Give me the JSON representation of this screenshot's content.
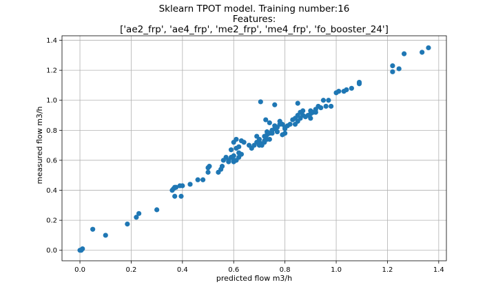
{
  "chart_data": {
    "type": "scatter",
    "title_lines": [
      "Sklearn TPOT model. Training number:16",
      "Features:",
      "['ae2_frp', 'ae4_frp', 'me2_frp', 'me4_frp', 'fo_booster_24']"
    ],
    "xlabel": "predicted flow m3/h",
    "ylabel": "measured flow m3/h",
    "xlim": [
      -0.07,
      1.43
    ],
    "ylim": [
      -0.07,
      1.43
    ],
    "xticks": [
      0.0,
      0.2,
      0.4,
      0.6,
      0.8,
      1.0,
      1.2,
      1.4
    ],
    "xtick_labels": [
      "0.0",
      "0.2",
      "0.4",
      "0.6",
      "0.8",
      "1.0",
      "1.2",
      "1.4"
    ],
    "yticks": [
      0.0,
      0.2,
      0.4,
      0.6,
      0.8,
      1.0,
      1.2,
      1.4
    ],
    "ytick_labels": [
      "0.0",
      "0.2",
      "0.4",
      "0.6",
      "0.8",
      "1.0",
      "1.2",
      "1.4"
    ],
    "grid": true,
    "marker_color": "#1f77b4",
    "series": [
      {
        "x": [
          0.0,
          0.01,
          0.005,
          0.05,
          0.1,
          0.185,
          0.22,
          0.23,
          0.3,
          0.36,
          0.365,
          0.37,
          0.375,
          0.39,
          0.4,
          0.37,
          0.395,
          0.43,
          0.46,
          0.48,
          0.5,
          0.5,
          0.505,
          0.54,
          0.55,
          0.555,
          0.56,
          0.57,
          0.58,
          0.58,
          0.59,
          0.6,
          0.6,
          0.59,
          0.6,
          0.61,
          0.62,
          0.61,
          0.62,
          0.63,
          0.62,
          0.61,
          0.6,
          0.63,
          0.64,
          0.66,
          0.67,
          0.68,
          0.69,
          0.7,
          0.7,
          0.71,
          0.72,
          0.72,
          0.73,
          0.73,
          0.74,
          0.74,
          0.75,
          0.75,
          0.76,
          0.76,
          0.77,
          0.78,
          0.78,
          0.79,
          0.8,
          0.8,
          0.81,
          0.82,
          0.83,
          0.84,
          0.85,
          0.85,
          0.86,
          0.86,
          0.87,
          0.87,
          0.88,
          0.89,
          0.9,
          0.9,
          0.91,
          0.92,
          0.93,
          0.94,
          0.95,
          0.96,
          0.97,
          0.98,
          0.705,
          0.725,
          0.74,
          0.76,
          0.77,
          0.85,
          0.84,
          0.69,
          0.7,
          0.71,
          0.72,
          0.8,
          0.79,
          0.75,
          0.73,
          0.9,
          0.92,
          1.0,
          1.01,
          1.03,
          1.04,
          1.06,
          1.09,
          1.09,
          1.22,
          1.22,
          1.245,
          1.265,
          1.335,
          1.36
        ],
        "y": [
          0.0,
          0.01,
          0.0,
          0.14,
          0.1,
          0.175,
          0.22,
          0.245,
          0.27,
          0.4,
          0.41,
          0.42,
          0.42,
          0.43,
          0.43,
          0.36,
          0.36,
          0.44,
          0.47,
          0.47,
          0.52,
          0.55,
          0.56,
          0.52,
          0.54,
          0.56,
          0.6,
          0.62,
          0.59,
          0.6,
          0.62,
          0.6,
          0.63,
          0.67,
          0.72,
          0.68,
          0.69,
          0.74,
          0.65,
          0.64,
          0.62,
          0.6,
          0.59,
          0.73,
          0.72,
          0.7,
          0.68,
          0.7,
          0.72,
          0.7,
          0.74,
          0.7,
          0.72,
          0.76,
          0.74,
          0.77,
          0.74,
          0.78,
          0.78,
          0.8,
          0.81,
          0.83,
          0.82,
          0.84,
          0.86,
          0.84,
          0.82,
          0.81,
          0.83,
          0.84,
          0.87,
          0.88,
          0.86,
          0.9,
          0.88,
          0.92,
          0.9,
          0.93,
          0.89,
          0.9,
          0.91,
          0.93,
          0.92,
          0.92,
          0.96,
          0.95,
          1.0,
          0.96,
          1.0,
          0.96,
          0.99,
          0.87,
          0.85,
          0.97,
          0.79,
          0.98,
          0.84,
          0.76,
          0.72,
          0.71,
          0.73,
          0.78,
          0.77,
          0.8,
          0.79,
          0.88,
          0.94,
          1.05,
          1.06,
          1.06,
          1.07,
          1.08,
          1.11,
          1.12,
          1.19,
          1.23,
          1.21,
          1.31,
          1.32,
          1.35
        ]
      }
    ]
  }
}
